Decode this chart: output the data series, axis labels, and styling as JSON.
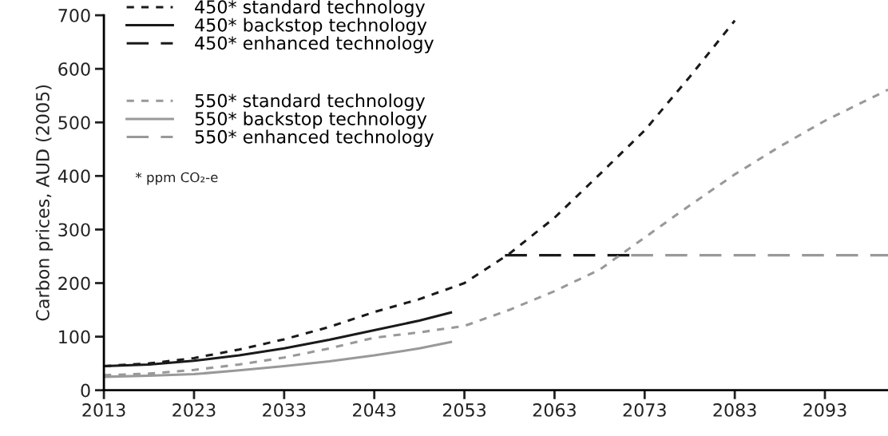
{
  "chart_data": {
    "type": "line",
    "ylabel": "Carbon prices, AUD (2005)",
    "xlim": [
      2013,
      2100
    ],
    "xticks": [
      2013,
      2023,
      2033,
      2043,
      2053,
      2063,
      2073,
      2083,
      2093
    ],
    "ylim": [
      0,
      700
    ],
    "yticks": [
      0,
      100,
      200,
      300,
      400,
      500,
      600,
      700
    ],
    "grid": false,
    "legend": "top left",
    "annotations": [
      "* ppm CO₂-e"
    ],
    "series": [
      {
        "name": "450* standard technology",
        "color": "#1a1a1a",
        "line_style": "dotted",
        "x": [
          2013,
          2018,
          2023,
          2028,
          2033,
          2038,
          2043,
          2048,
          2053,
          2058,
          2063,
          2068,
          2073,
          2078,
          2083
        ],
        "values": [
          45,
          50,
          60,
          76,
          95,
          118,
          146,
          170,
          200,
          255,
          322,
          403,
          485,
          585,
          690
        ]
      },
      {
        "name": "450* backstop technology",
        "color": "#1a1a1a",
        "line_style": "solid",
        "x": [
          2013,
          2018,
          2023,
          2028,
          2033,
          2038,
          2043,
          2048,
          2051.5
        ],
        "values": [
          45,
          48,
          55,
          65,
          78,
          94,
          112,
          130,
          145
        ]
      },
      {
        "name": "450* enhanced technology",
        "color": "#1a1a1a",
        "line_style": "dashed",
        "x": [
          2057.5,
          2071.5
        ],
        "values": [
          252,
          252
        ]
      },
      {
        "name": "550* standard technology",
        "color": "#999999",
        "line_style": "dotted",
        "x": [
          2013,
          2018,
          2023,
          2028,
          2033,
          2038,
          2043,
          2048,
          2053,
          2058,
          2063,
          2068,
          2073,
          2078,
          2083,
          2088,
          2093,
          2100
        ],
        "values": [
          28,
          31,
          38,
          48,
          61,
          78,
          98,
          108,
          120,
          150,
          185,
          225,
          285,
          345,
          403,
          455,
          503,
          561
        ]
      },
      {
        "name": "550* backstop technology",
        "color": "#999999",
        "line_style": "solid",
        "x": [
          2013,
          2018,
          2023,
          2028,
          2033,
          2038,
          2043,
          2048,
          2051.5
        ],
        "values": [
          25,
          27,
          30,
          37,
          45,
          54,
          65,
          78,
          90
        ]
      },
      {
        "name": "550* enhanced technology",
        "color": "#999999",
        "line_style": "dashed",
        "x": [
          2071.5,
          2100
        ],
        "values": [
          252,
          252
        ]
      }
    ]
  }
}
